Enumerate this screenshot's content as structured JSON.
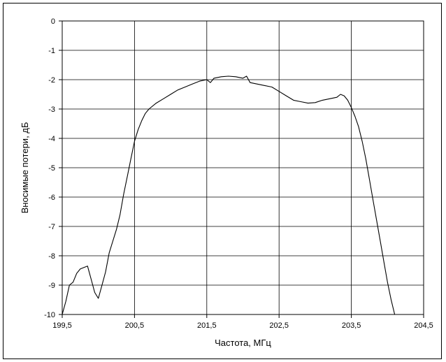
{
  "chart_data": {
    "type": "line",
    "title": "",
    "xlabel": "Частота, МГц",
    "ylabel": "Вносимые потери, дБ",
    "xlim": [
      199.5,
      204.5
    ],
    "ylim": [
      -10,
      0
    ],
    "x_ticks": [
      199.5,
      200.5,
      201.5,
      202.5,
      203.5,
      204.5
    ],
    "x_tick_labels": [
      "199,5",
      "200,5",
      "201,5",
      "202,5",
      "203,5",
      "204,5"
    ],
    "y_ticks": [
      0,
      -1,
      -2,
      -3,
      -4,
      -5,
      -6,
      -7,
      -8,
      -9,
      -10
    ],
    "y_tick_labels": [
      "0",
      "-1",
      "-2",
      "-3",
      "-4",
      "-5",
      "-6",
      "-7",
      "-8",
      "-9",
      "-10"
    ],
    "grid": true,
    "line_color": "#000000",
    "series": [
      {
        "x": [
          199.5,
          199.55,
          199.6,
          199.65,
          199.7,
          199.75,
          199.8,
          199.85,
          199.9,
          199.95,
          200.0,
          200.05,
          200.1,
          200.15,
          200.2,
          200.25,
          200.3,
          200.35,
          200.4,
          200.45,
          200.5,
          200.55,
          200.6,
          200.65,
          200.7,
          200.8,
          200.9,
          201.0,
          201.1,
          201.2,
          201.3,
          201.4,
          201.5,
          201.55,
          201.6,
          201.7,
          201.8,
          201.9,
          202.0,
          202.05,
          202.1,
          202.2,
          202.3,
          202.4,
          202.5,
          202.6,
          202.7,
          202.8,
          202.9,
          203.0,
          203.1,
          203.2,
          203.3,
          203.35,
          203.4,
          203.45,
          203.5,
          203.55,
          203.6,
          203.65,
          203.7,
          203.75,
          203.8,
          203.85,
          203.9,
          203.95,
          204.0,
          204.05,
          204.1,
          204.15,
          204.2
        ],
        "y": [
          -10.0,
          -9.55,
          -9.0,
          -8.9,
          -8.6,
          -8.45,
          -8.4,
          -8.35,
          -8.8,
          -9.25,
          -9.45,
          -9.0,
          -8.55,
          -7.9,
          -7.5,
          -7.1,
          -6.6,
          -5.9,
          -5.3,
          -4.7,
          -4.1,
          -3.7,
          -3.4,
          -3.15,
          -3.0,
          -2.8,
          -2.65,
          -2.5,
          -2.35,
          -2.25,
          -2.15,
          -2.05,
          -2.0,
          -2.1,
          -1.95,
          -1.9,
          -1.88,
          -1.9,
          -1.95,
          -1.88,
          -2.1,
          -2.15,
          -2.2,
          -2.25,
          -2.4,
          -2.55,
          -2.7,
          -2.75,
          -2.8,
          -2.78,
          -2.7,
          -2.65,
          -2.6,
          -2.5,
          -2.55,
          -2.7,
          -2.95,
          -3.25,
          -3.6,
          -4.1,
          -4.7,
          -5.4,
          -6.1,
          -6.8,
          -7.5,
          -8.2,
          -8.9,
          -9.5,
          -10.0,
          -10.0,
          -10.0
        ]
      }
    ]
  }
}
